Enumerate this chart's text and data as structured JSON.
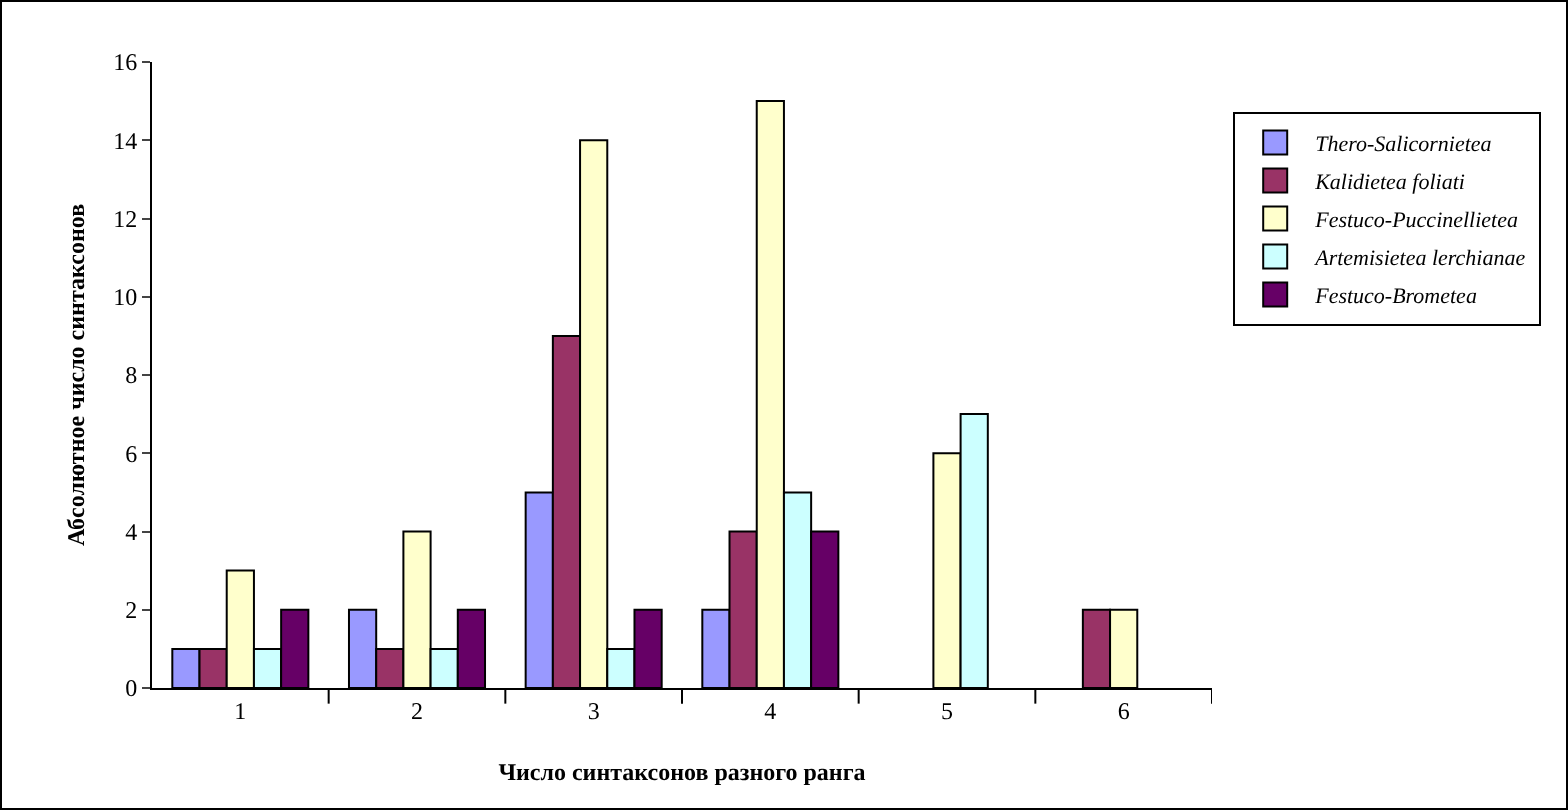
{
  "chart_data": {
    "type": "bar",
    "xlabel": "Число синтаксонов разного ранга",
    "ylabel": "Абсолютное число синтаксонов",
    "categories": [
      "1",
      "2",
      "3",
      "4",
      "5",
      "6"
    ],
    "series": [
      {
        "name": "Thero-Salicornietea",
        "color": "#9999ff",
        "values": [
          1,
          2,
          5,
          2,
          null,
          null
        ]
      },
      {
        "name": "Kalidietea foliati",
        "color": "#993366",
        "values": [
          1,
          1,
          9,
          4,
          null,
          2
        ]
      },
      {
        "name": "Festuco-Puccinellietea",
        "color": "#ffffcc",
        "values": [
          3,
          4,
          14,
          15,
          6,
          2
        ]
      },
      {
        "name": "Artemisietea lerchianae",
        "color": "#ccffff",
        "values": [
          1,
          1,
          1,
          5,
          7,
          null
        ]
      },
      {
        "name": "Festuco-Brometea",
        "color": "#660066",
        "values": [
          2,
          2,
          2,
          4,
          null,
          null
        ]
      }
    ],
    "ylim": [
      0,
      16
    ],
    "yticks": [
      0,
      2,
      4,
      6,
      8,
      10,
      12,
      14,
      16
    ],
    "grid": false,
    "legend": "right"
  }
}
